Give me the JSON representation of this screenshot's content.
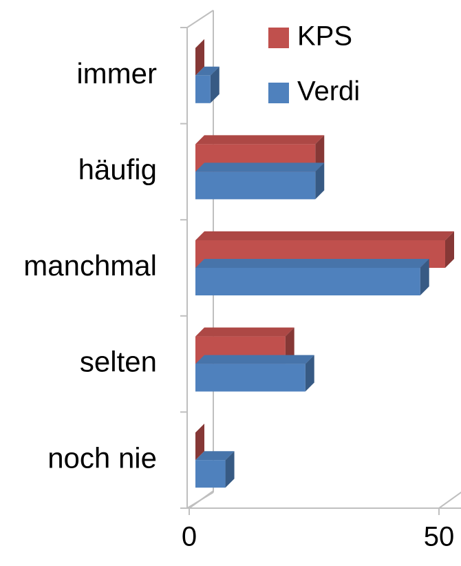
{
  "chart_data": {
    "type": "bar3d_horizontal",
    "categories": [
      "immer",
      "häufig",
      "manchmal",
      "selten",
      "noch nie"
    ],
    "series": [
      {
        "name": "KPS",
        "color": "#c0504d",
        "values": [
          0,
          24,
          50,
          18,
          0
        ]
      },
      {
        "name": "Verdi",
        "color": "#4f81bd",
        "values": [
          3,
          24,
          45,
          22,
          6
        ]
      }
    ],
    "xlim": [
      0,
      50
    ],
    "xticks": [
      0,
      50
    ],
    "legend": "top-right"
  }
}
